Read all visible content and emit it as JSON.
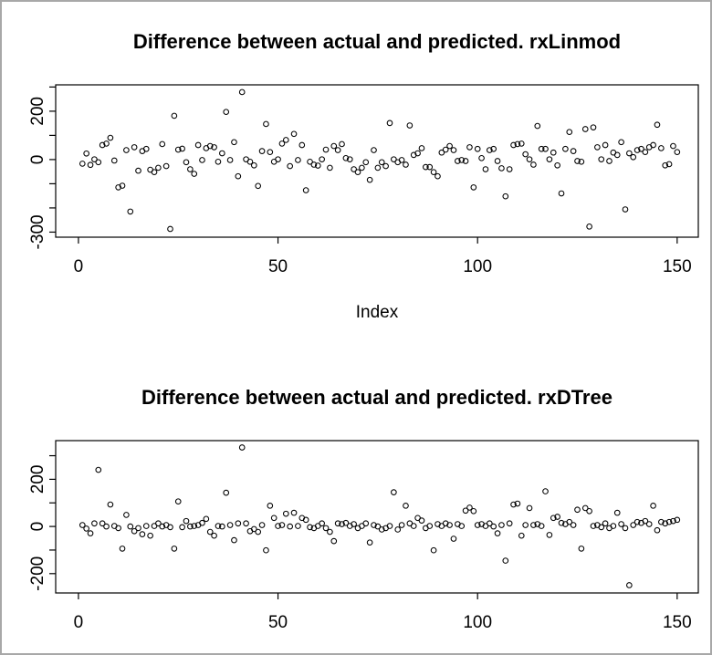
{
  "page": {
    "background": "#ffffff",
    "border_color": "#a8a8a8",
    "axis_color": "#000000",
    "point_color": "#000000"
  },
  "chart_data": [
    {
      "type": "scatter",
      "title": "Difference between actual and predicted. rxLinmod",
      "xlabel": "Index",
      "ylabel": "",
      "marker": "open-circle",
      "grid": false,
      "x_ticks": [
        0,
        50,
        100,
        150
      ],
      "y_ticks": [
        -300,
        -200,
        -100,
        0,
        100,
        200,
        300
      ],
      "y_ticks_labeled": [
        -300,
        0,
        200
      ],
      "xlim": [
        -5.7,
        155.3
      ],
      "ylim": [
        -321,
        309
      ],
      "x_start": 1,
      "values": [
        -17,
        25,
        -22,
        1,
        -11,
        60,
        66,
        90,
        -4,
        -115,
        -108,
        39,
        -215,
        51,
        -46,
        35,
        44,
        -42,
        -52,
        -34,
        64,
        -27,
        -287,
        181,
        41,
        45,
        -11,
        -40,
        -59,
        60,
        -2,
        47,
        56,
        51,
        -9,
        26,
        197,
        -2,
        72,
        -69,
        279,
        1,
        -9,
        -24,
        -109,
        35,
        147,
        31,
        -9,
        1,
        66,
        81,
        -27,
        106,
        -2,
        60,
        -127,
        -9,
        -21,
        -25,
        1,
        41,
        -34,
        56,
        39,
        64,
        6,
        1,
        -40,
        -52,
        -34,
        -11,
        -84,
        39,
        -34,
        -11,
        -27,
        151,
        1,
        -11,
        -2,
        -21,
        141,
        19,
        26,
        47,
        -31,
        -31,
        -52,
        -69,
        29,
        41,
        56,
        39,
        -6,
        -2,
        -6,
        51,
        -115,
        44,
        6,
        -40,
        39,
        44,
        -6,
        -36,
        -152,
        -40,
        60,
        64,
        66,
        22,
        1,
        -21,
        139,
        44,
        44,
        1,
        29,
        -24,
        -140,
        44,
        114,
        35,
        -6,
        -9,
        126,
        -277,
        133,
        51,
        1,
        60,
        -6,
        29,
        19,
        72,
        -206,
        26,
        10,
        39,
        44,
        31,
        51,
        60,
        144,
        47,
        -24,
        -19,
        56,
        31
      ]
    },
    {
      "type": "scatter",
      "title": "Difference between actual and predicted. rxDTree",
      "xlabel": "",
      "ylabel": "",
      "marker": "open-circle",
      "grid": false,
      "x_ticks": [
        0,
        50,
        100,
        150
      ],
      "y_ticks": [
        -200,
        -100,
        0,
        100,
        200,
        300
      ],
      "y_ticks_labeled": [
        -200,
        0,
        200
      ],
      "xlim": [
        -5.7,
        155.3
      ],
      "ylim": [
        -282,
        364
      ],
      "x_start": 1,
      "values": [
        6,
        -9,
        -29,
        13,
        240,
        13,
        0,
        93,
        2,
        -7,
        -94,
        49,
        0,
        -20,
        -7,
        -33,
        2,
        -39,
        2,
        13,
        0,
        6,
        -3,
        -94,
        106,
        -3,
        23,
        0,
        2,
        6,
        15,
        32,
        -23,
        -39,
        2,
        0,
        143,
        6,
        -58,
        13,
        335,
        13,
        -20,
        -11,
        -23,
        6,
        -101,
        88,
        36,
        2,
        6,
        54,
        0,
        58,
        2,
        36,
        28,
        -3,
        -7,
        2,
        13,
        -7,
        -23,
        -62,
        13,
        10,
        15,
        2,
        10,
        -7,
        2,
        13,
        -68,
        6,
        0,
        -13,
        -7,
        2,
        145,
        -13,
        6,
        88,
        13,
        2,
        36,
        25,
        -7,
        2,
        -101,
        10,
        2,
        13,
        6,
        -52,
        10,
        2,
        67,
        80,
        65,
        6,
        10,
        2,
        13,
        0,
        -29,
        6,
        -145,
        13,
        93,
        97,
        -39,
        6,
        78,
        6,
        10,
        2,
        149,
        -36,
        36,
        41,
        15,
        10,
        19,
        6,
        71,
        -94,
        78,
        65,
        2,
        6,
        -3,
        13,
        -7,
        2,
        58,
        10,
        -7,
        -249,
        6,
        19,
        15,
        23,
        10,
        88,
        -16,
        19,
        13,
        19,
        23,
        28
      ]
    }
  ]
}
